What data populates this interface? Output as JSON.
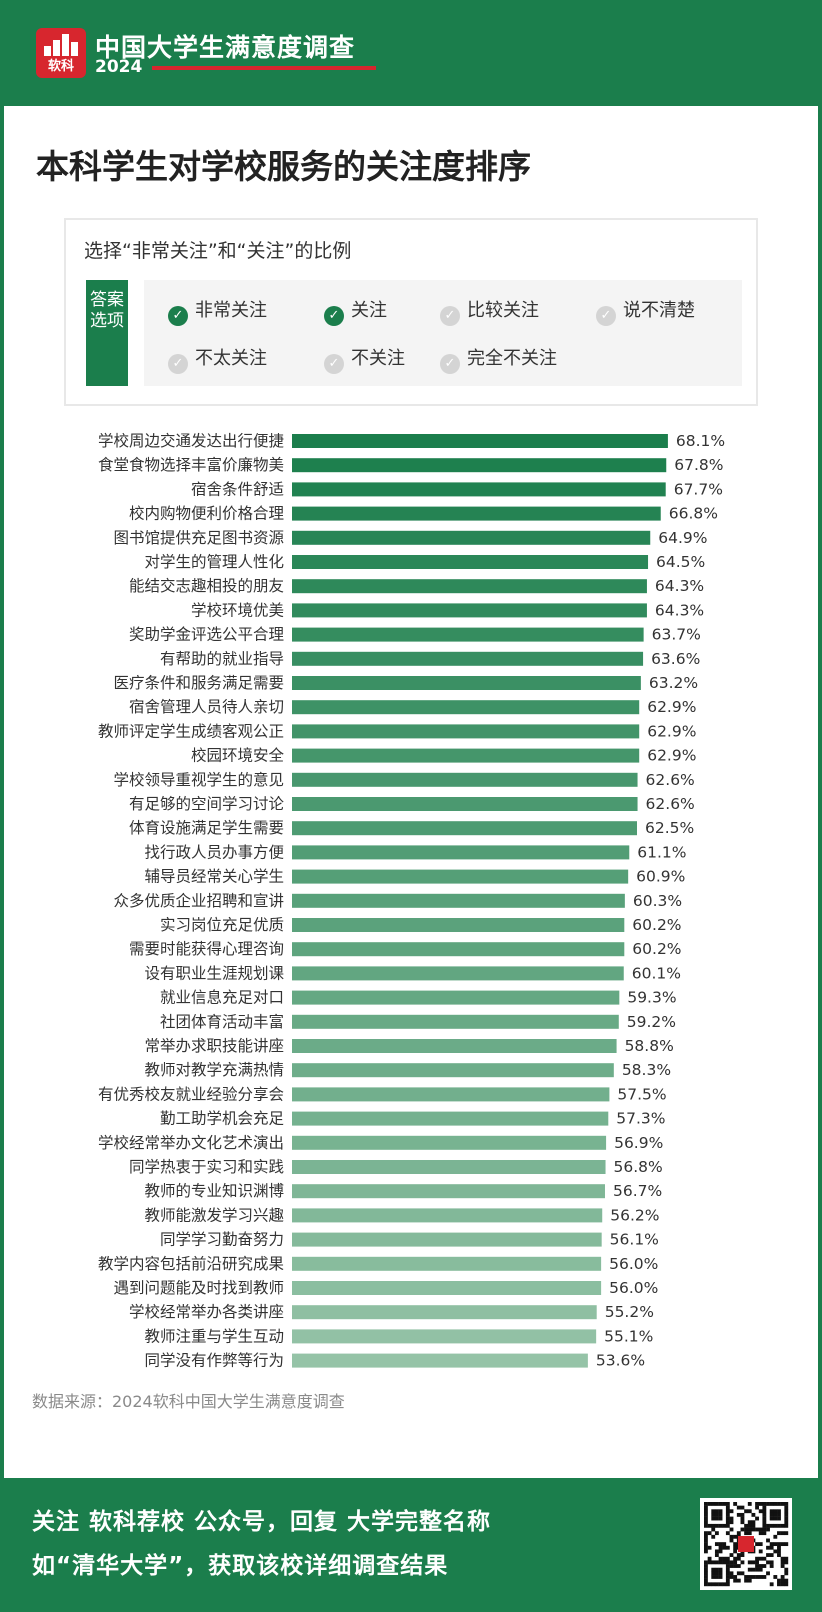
{
  "brand": {
    "logo_text": "软科",
    "title": "中国大学生满意度调查",
    "year": "2024"
  },
  "page_title": "本科学生对学校服务的关注度排序",
  "legend": {
    "caption": "选择“非常关注”和“关注”的比例",
    "tag": "答案选项",
    "options": [
      {
        "label": "非常关注",
        "selected": true
      },
      {
        "label": "关注",
        "selected": true
      },
      {
        "label": "比较关注",
        "selected": false
      },
      {
        "label": "说不清楚",
        "selected": false
      },
      {
        "label": "不太关注",
        "selected": false
      },
      {
        "label": "不关注",
        "selected": false
      },
      {
        "label": "完全不关注",
        "selected": false
      }
    ]
  },
  "chart_data": {
    "type": "bar",
    "orientation": "horizontal",
    "categories": [
      "学校周边交通发达出行便捷",
      "食堂食物选择丰富价廉物美",
      "宿舍条件舒适",
      "校内购物便利价格合理",
      "图书馆提供充足图书资源",
      "对学生的管理人性化",
      "能结交志趣相投的朋友",
      "学校环境优美",
      "奖助学金评选公平合理",
      "有帮助的就业指导",
      "医疗条件和服务满足需要",
      "宿舍管理人员待人亲切",
      "教师评定学生成绩客观公正",
      "校园环境安全",
      "学校领导重视学生的意见",
      "有足够的空间学习讨论",
      "体育设施满足学生需要",
      "找行政人员办事方便",
      "辅导员经常关心学生",
      "众多优质企业招聘和宣讲",
      "实习岗位充足优质",
      "需要时能获得心理咨询",
      "设有职业生涯规划课",
      "就业信息充足对口",
      "社团体育活动丰富",
      "常举办求职技能讲座",
      "教师对教学充满热情",
      "有优秀校友就业经验分享会",
      "勤工助学机会充足",
      "学校经常举办文化艺术演出",
      "同学热衷于实习和实践",
      "教师的专业知识渊博",
      "教师能激发学习兴趣",
      "同学学习勤奋努力",
      "教学内容包括前沿研究成果",
      "遇到问题能及时找到教师",
      "学校经常举办各类讲座",
      "教师注重与学生互动",
      "同学没有作弊等行为"
    ],
    "values": [
      68.1,
      67.8,
      67.7,
      66.8,
      64.9,
      64.5,
      64.3,
      64.3,
      63.7,
      63.6,
      63.2,
      62.9,
      62.9,
      62.9,
      62.6,
      62.6,
      62.5,
      61.1,
      60.9,
      60.3,
      60.2,
      60.2,
      60.1,
      59.3,
      59.2,
      58.8,
      58.3,
      57.5,
      57.3,
      56.9,
      56.8,
      56.7,
      56.2,
      56.1,
      56.0,
      56.0,
      55.2,
      55.1,
      53.6
    ],
    "value_labels": [
      "68.1%",
      "67.8%",
      "67.7%",
      "66.8%",
      "64.9%",
      "64.5%",
      "64.3%",
      "64.3%",
      "63.7%",
      "63.6%",
      "63.2%",
      "62.9%",
      "62.9%",
      "62.9%",
      "62.6%",
      "62.6%",
      "62.5%",
      "61.1%",
      "60.9%",
      "60.3%",
      "60.2%",
      "60.2%",
      "60.1%",
      "59.3%",
      "59.2%",
      "58.8%",
      "58.3%",
      "57.5%",
      "57.3%",
      "56.9%",
      "56.8%",
      "56.7%",
      "56.2%",
      "56.1%",
      "56.0%",
      "56.0%",
      "55.2%",
      "55.1%",
      "53.6%"
    ],
    "unit": "%",
    "color_start": "#1b7e4c",
    "color_end": "#95c3a7",
    "grid": false
  },
  "source": "数据来源：2024软科中国大学生满意度调查",
  "footer": {
    "line1": "关注 软科荐校 公众号，回复 大学完整名称",
    "line2": "如“清华大学”，获取该校详细调查结果"
  },
  "colors": {
    "brand_green": "#1b7e4c",
    "brand_red": "#d7262e"
  }
}
